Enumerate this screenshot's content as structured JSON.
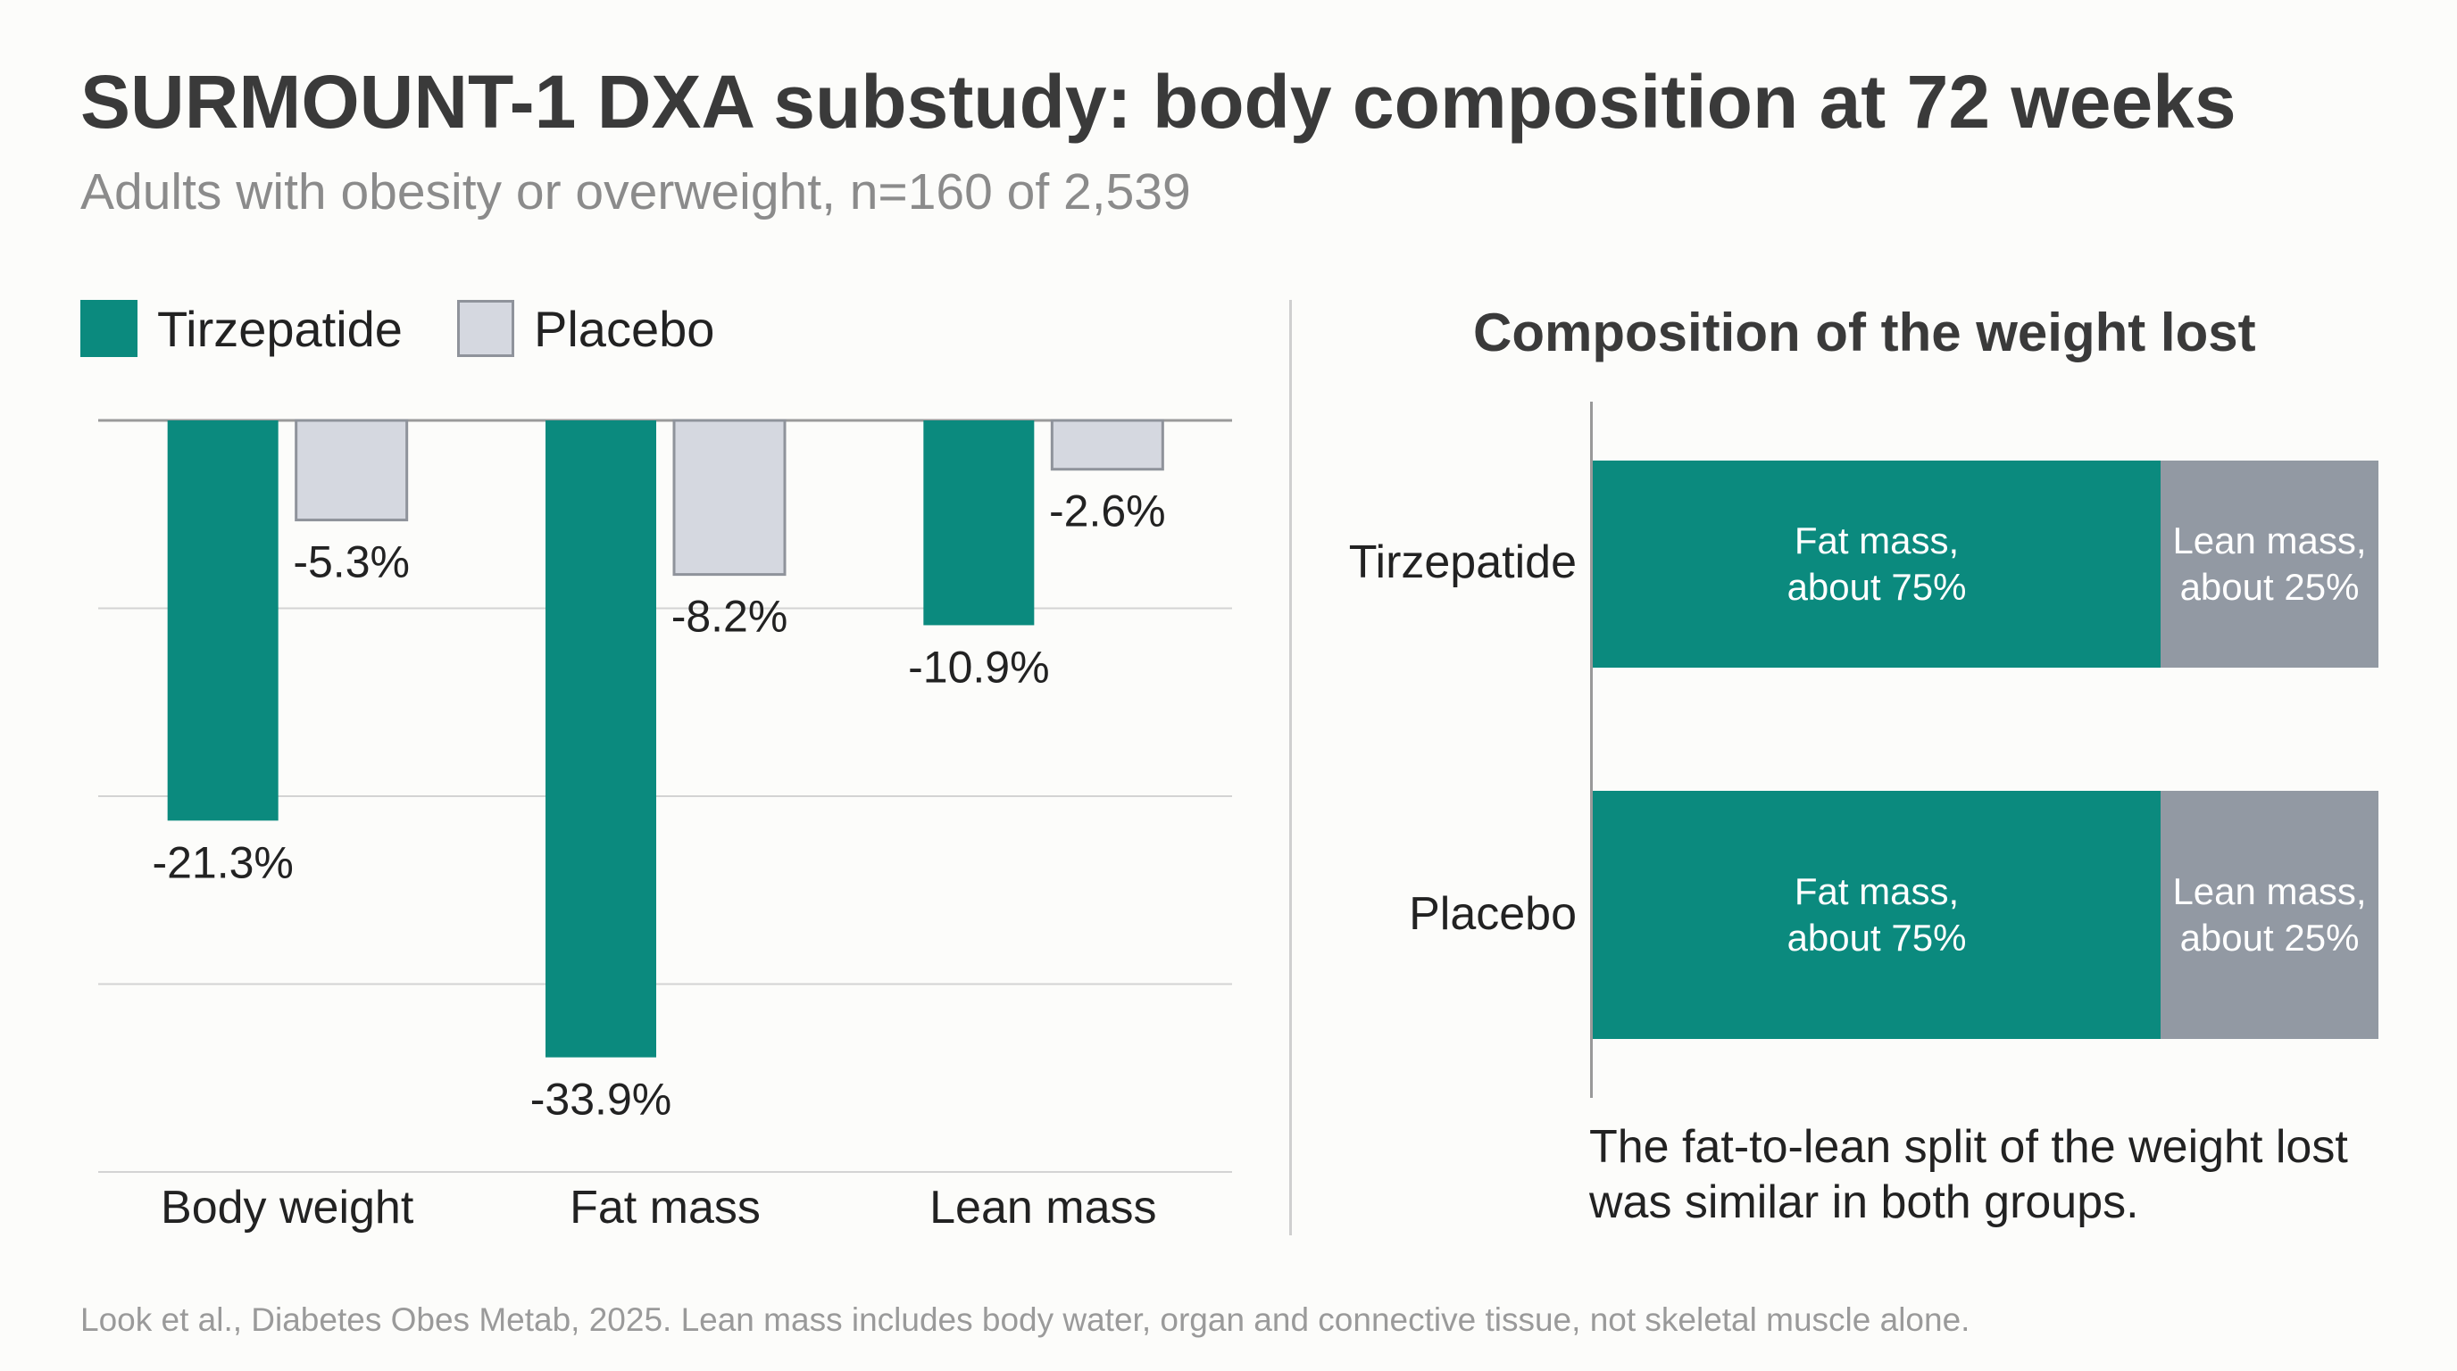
{
  "header": {
    "title": "SURMOUNT-1 DXA substudy: body composition at 72 weeks",
    "subtitle": "Adults with obesity or overweight, n=160 of 2,539"
  },
  "legend": {
    "items": [
      {
        "label": "Tirzepatide",
        "color": "#0b8a7e"
      },
      {
        "label": "Placebo",
        "color": "#d5d8e0"
      }
    ]
  },
  "chart_data": [
    {
      "type": "bar",
      "categories": [
        "Body weight",
        "Fat mass",
        "Lean mass"
      ],
      "series": [
        {
          "name": "Tirzepatide",
          "values": [
            -21.3,
            -33.9,
            -10.9
          ],
          "labels": [
            "-21.3%",
            "-33.9%",
            "-10.9%"
          ],
          "color": "#0b8a7e"
        },
        {
          "name": "Placebo",
          "values": [
            -5.3,
            -8.2,
            -2.6
          ],
          "labels": [
            "-5.3%",
            "-8.2%",
            "-2.6%"
          ],
          "color": "#d5d8e0"
        }
      ],
      "ylim": [
        -40,
        0
      ],
      "grid": true,
      "legend": "top-left"
    },
    {
      "type": "bar",
      "orientation": "horizontal",
      "stacked": true,
      "title": "Composition of the weight lost",
      "categories": [
        "Tirzepatide",
        "Placebo"
      ],
      "series": [
        {
          "name": "Fat mass",
          "values": [
            75,
            75
          ],
          "labels": [
            "Fat mass,\nabout 75%",
            "Fat mass,\nabout 75%"
          ],
          "color": "#0b8a7e"
        },
        {
          "name": "Lean mass",
          "values": [
            25,
            25
          ],
          "labels": [
            "Lean mass,\nabout 25%",
            "Lean mass,\nabout 25%"
          ],
          "color": "#9299a3"
        }
      ],
      "note": "The fat-to-lean split of the weight lost was similar in both groups."
    }
  ],
  "footer": {
    "source": "Look et al., Diabetes Obes Metab, 2025. Lean mass includes body water, organ and connective tissue, not skeletal muscle alone."
  }
}
